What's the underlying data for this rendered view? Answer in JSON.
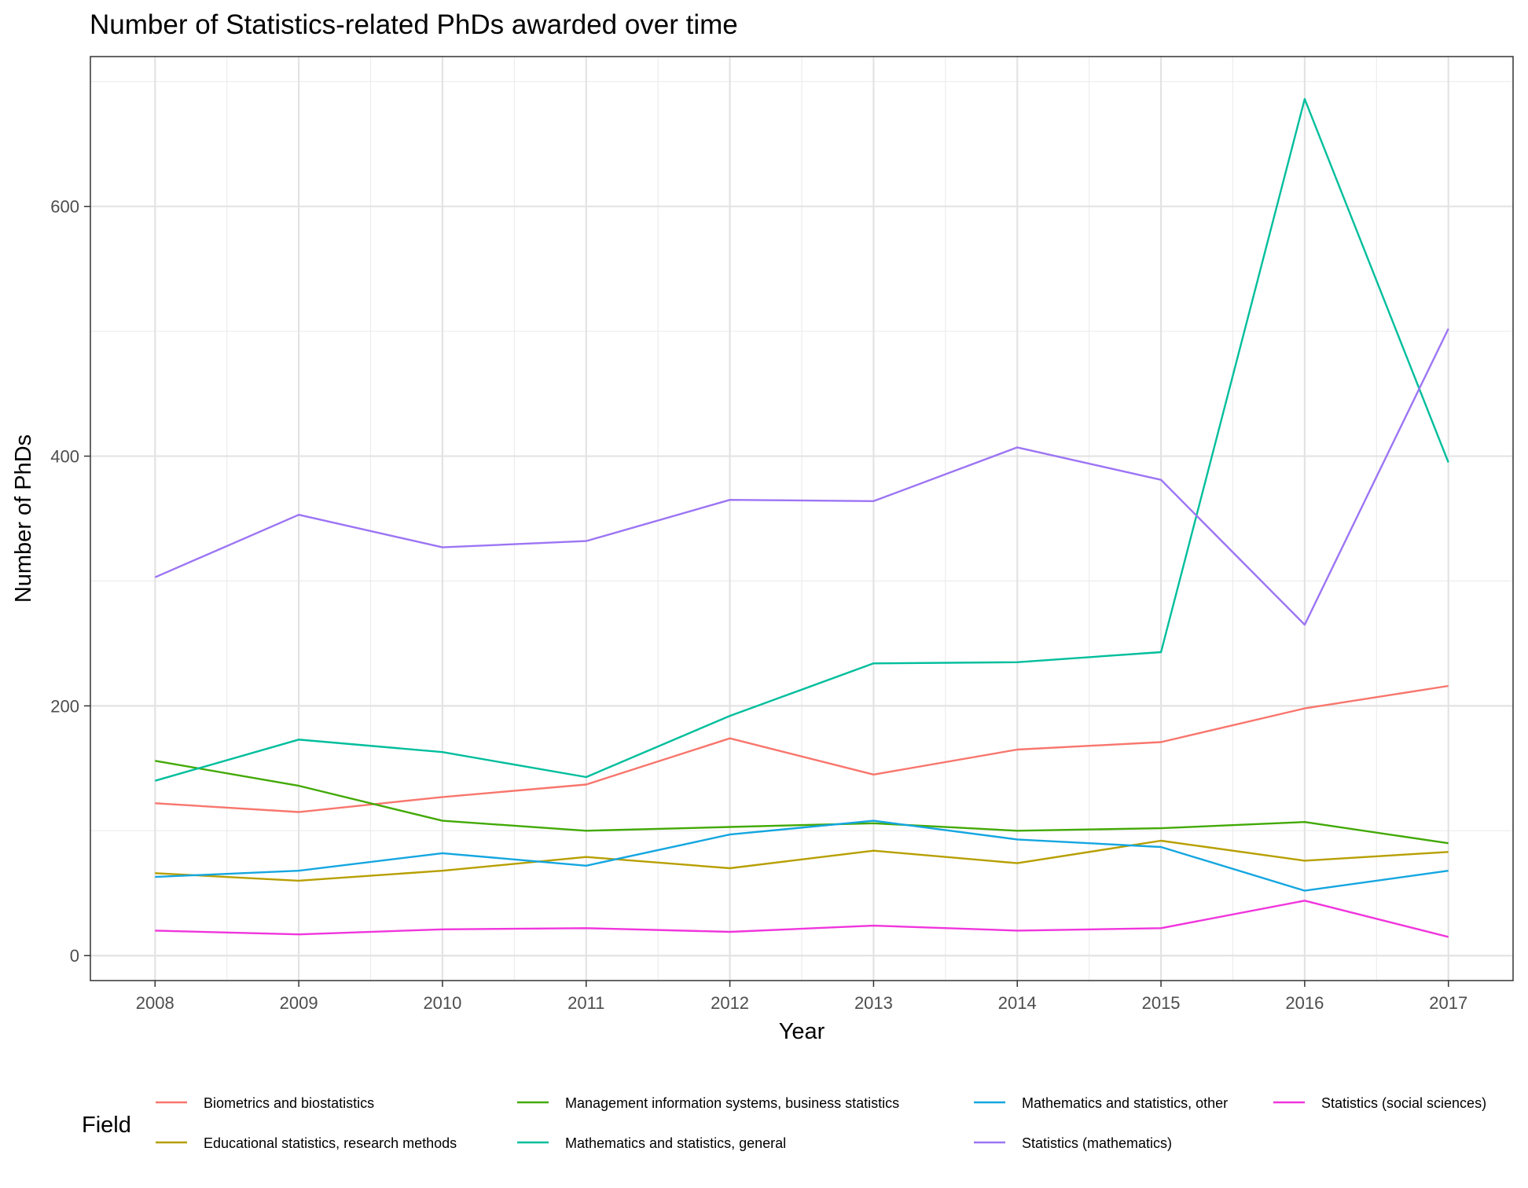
{
  "chart_data": {
    "type": "line",
    "title": "Number of Statistics-related PhDs awarded over time",
    "xlabel": "Year",
    "ylabel": "Number of PhDs",
    "x": [
      2008,
      2009,
      2010,
      2011,
      2012,
      2013,
      2014,
      2015,
      2016,
      2017
    ],
    "xlim": [
      2007.55,
      2017.45
    ],
    "ylim": [
      -20,
      720
    ],
    "x_ticks": [
      "2008",
      "2009",
      "2010",
      "2011",
      "2012",
      "2013",
      "2014",
      "2015",
      "2016",
      "2017"
    ],
    "y_ticks": [
      0,
      200,
      400,
      600
    ],
    "grid": true,
    "legend_title": "Field",
    "legend_position": "bottom",
    "series": [
      {
        "name": "Biometrics and biostatistics",
        "color": "#F8766D",
        "values": [
          122,
          115,
          127,
          137,
          174,
          145,
          165,
          171,
          198,
          216
        ]
      },
      {
        "name": "Educational statistics, research methods",
        "color": "#B79F00",
        "values": [
          66,
          60,
          68,
          79,
          70,
          84,
          74,
          92,
          76,
          83
        ]
      },
      {
        "name": "Management information systems, business statistics",
        "color": "#42A905",
        "values": [
          156,
          136,
          108,
          100,
          103,
          106,
          100,
          102,
          107,
          90
        ]
      },
      {
        "name": "Mathematics and statistics, general",
        "color": "#00BE9C",
        "values": [
          140,
          173,
          163,
          143,
          192,
          234,
          235,
          243,
          686,
          395
        ]
      },
      {
        "name": "Mathematics and statistics, other",
        "color": "#14A6E0",
        "values": [
          63,
          68,
          82,
          72,
          97,
          108,
          93,
          87,
          52,
          68
        ]
      },
      {
        "name": "Statistics (mathematics)",
        "color": "#9C75F4",
        "values": [
          303,
          353,
          327,
          332,
          365,
          364,
          407,
          381,
          265,
          502
        ]
      },
      {
        "name": "Statistics (social sciences)",
        "color": "#F035DC",
        "values": [
          20,
          17,
          21,
          22,
          19,
          24,
          20,
          22,
          44,
          15
        ]
      }
    ]
  }
}
